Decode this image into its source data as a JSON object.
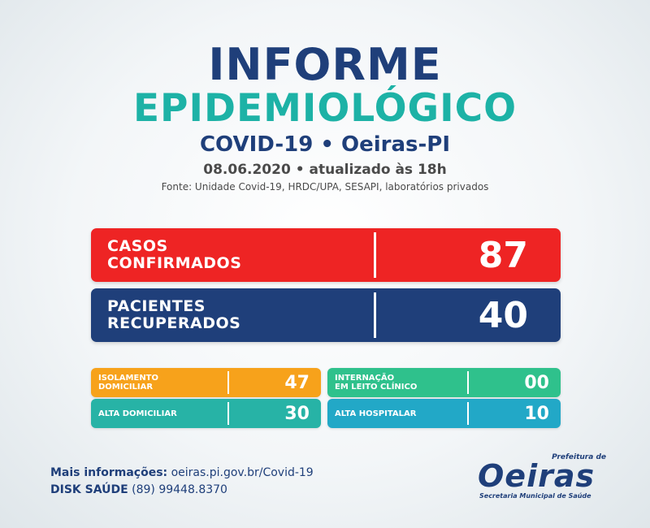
{
  "header": {
    "title_line1": "INFORME",
    "title_line2": "EPIDEMIOLÓGICO",
    "subtitle": "COVID-19 • Oeiras-PI",
    "date": "08.06.2020 • atualizado às 18h",
    "source": "Fonte: Unidade Covid-19, HRDC/UPA, SESAPI, laboratórios privados"
  },
  "main_cards": [
    {
      "label_line1": "CASOS",
      "label_line2": "CONFIRMADOS",
      "value": "87",
      "color": "#ee2424"
    },
    {
      "label_line1": "PACIENTES",
      "label_line2": "RECUPERADOS",
      "value": "40",
      "color": "#1f3f7a"
    }
  ],
  "small_cards": [
    {
      "label_line1": "ISOLAMENTO",
      "label_line2": "DOMICILIAR",
      "value": "47",
      "color": "#f7a21b"
    },
    {
      "label_line1": "INTERNAÇÃO",
      "label_line2": "EM LEITO CLÍNICO",
      "value": "00",
      "color": "#2fc18c"
    },
    {
      "label_line1": "ALTA DOMICILIAR",
      "label_line2": "",
      "value": "30",
      "color": "#27b3a6"
    },
    {
      "label_line1": "ALTA HOSPITALAR",
      "label_line2": "",
      "value": "10",
      "color": "#22a8c7"
    }
  ],
  "footer": {
    "info_label": "Mais informações:",
    "info_value": "oeiras.pi.gov.br/Covid-19",
    "disk_label": "DISK SAÚDE",
    "disk_value": "(89) 99448.8370"
  },
  "logo": {
    "prefix": "Prefeitura de",
    "name": "Oeiras",
    "secretariat": "Secretaria Municipal de Saúde"
  }
}
